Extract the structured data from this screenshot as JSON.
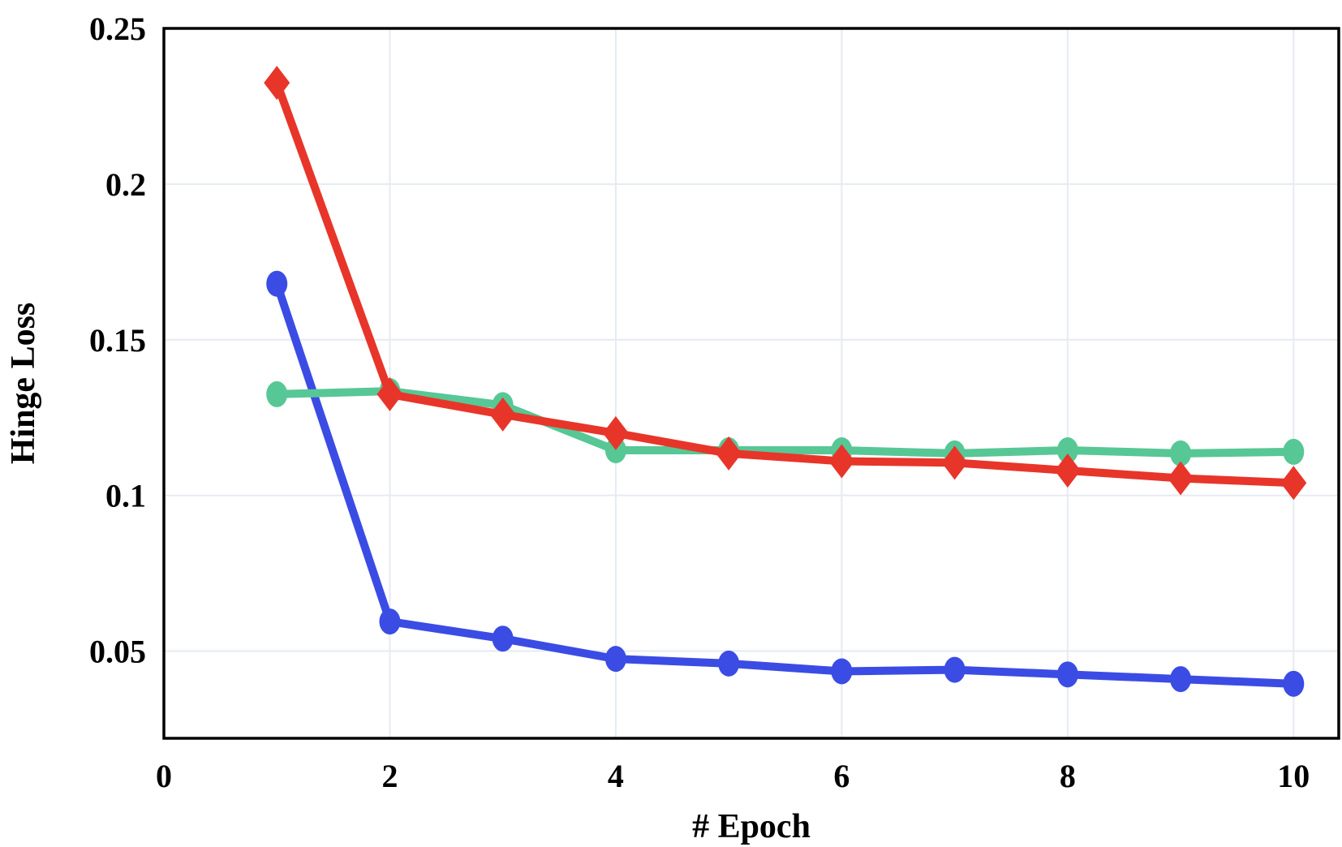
{
  "chart_data": {
    "type": "line",
    "title": "",
    "xlabel": "# Epoch",
    "ylabel": "Hinge Loss",
    "xlim": [
      0,
      10.4
    ],
    "ylim": [
      0.022,
      0.25
    ],
    "xticks": [
      0,
      2,
      4,
      6,
      8,
      10
    ],
    "xtick_labels": [
      "0",
      "2",
      "4",
      "6",
      "8",
      "10"
    ],
    "yticks": [
      0.05,
      0.1,
      0.15,
      0.2,
      0.25
    ],
    "ytick_labels": [
      "0.05",
      "0.1",
      "0.15",
      "0.2",
      "0.25"
    ],
    "grid": true,
    "x": [
      1,
      2,
      3,
      4,
      5,
      6,
      7,
      8,
      9,
      10
    ],
    "series": [
      {
        "name": "blue",
        "color": "#3b4ce4",
        "marker": "circle",
        "values": [
          0.168,
          0.0595,
          0.054,
          0.0475,
          0.046,
          0.0435,
          0.044,
          0.0425,
          0.041,
          0.0395
        ]
      },
      {
        "name": "green",
        "color": "#57c795",
        "marker": "circle",
        "values": [
          0.1325,
          0.1335,
          0.129,
          0.1145,
          0.1145,
          0.1145,
          0.1135,
          0.1145,
          0.1135,
          0.114
        ]
      },
      {
        "name": "red",
        "color": "#e8352a",
        "marker": "diamond",
        "values": [
          0.2325,
          0.1325,
          0.126,
          0.12,
          0.1135,
          0.111,
          0.1105,
          0.108,
          0.1055,
          0.104
        ]
      }
    ]
  }
}
